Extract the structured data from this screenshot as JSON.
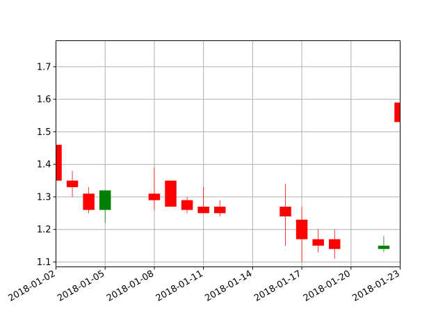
{
  "chart_data": {
    "type": "candlestick",
    "title": "",
    "xlabel": "",
    "ylabel": "",
    "grid": true,
    "legend": "none",
    "xlim": [
      "2018-01-02",
      "2018-01-23"
    ],
    "ylim": [
      1.085,
      1.78
    ],
    "x_ticks": [
      "2018-01-02",
      "2018-01-05",
      "2018-01-08",
      "2018-01-11",
      "2018-01-14",
      "2018-01-17",
      "2018-01-20",
      "2018-01-23"
    ],
    "y_ticks": [
      "1.1",
      "1.2",
      "1.3",
      "1.4",
      "1.5",
      "1.6",
      "1.7"
    ],
    "colors": {
      "up": "#008000",
      "down": "#ff0000",
      "grid": "#b0b0b0"
    },
    "candles": [
      {
        "date": "2018-01-02",
        "open": 1.46,
        "high": 1.46,
        "low": 1.35,
        "close": 1.35
      },
      {
        "date": "2018-01-03",
        "open": 1.35,
        "high": 1.38,
        "low": 1.3,
        "close": 1.33
      },
      {
        "date": "2018-01-04",
        "open": 1.31,
        "high": 1.33,
        "low": 1.25,
        "close": 1.26
      },
      {
        "date": "2018-01-05",
        "open": 1.26,
        "high": 1.32,
        "low": 1.22,
        "close": 1.32
      },
      {
        "date": "2018-01-08",
        "open": 1.31,
        "high": 1.39,
        "low": 1.26,
        "close": 1.29
      },
      {
        "date": "2018-01-09",
        "open": 1.35,
        "high": 1.35,
        "low": 1.27,
        "close": 1.27
      },
      {
        "date": "2018-01-10",
        "open": 1.29,
        "high": 1.3,
        "low": 1.25,
        "close": 1.26
      },
      {
        "date": "2018-01-11",
        "open": 1.27,
        "high": 1.33,
        "low": 1.25,
        "close": 1.25
      },
      {
        "date": "2018-01-12",
        "open": 1.27,
        "high": 1.29,
        "low": 1.24,
        "close": 1.25
      },
      {
        "date": "2018-01-16",
        "open": 1.27,
        "high": 1.34,
        "low": 1.15,
        "close": 1.24
      },
      {
        "date": "2018-01-17",
        "open": 1.23,
        "high": 1.27,
        "low": 1.1,
        "close": 1.17
      },
      {
        "date": "2018-01-18",
        "open": 1.17,
        "high": 1.2,
        "low": 1.13,
        "close": 1.15
      },
      {
        "date": "2018-01-19",
        "open": 1.17,
        "high": 1.2,
        "low": 1.11,
        "close": 1.14
      },
      {
        "date": "2018-01-22",
        "open": 1.14,
        "high": 1.18,
        "low": 1.13,
        "close": 1.15
      },
      {
        "date": "2018-01-23",
        "open": 1.59,
        "high": 1.59,
        "low": 1.53,
        "close": 1.53
      }
    ]
  }
}
